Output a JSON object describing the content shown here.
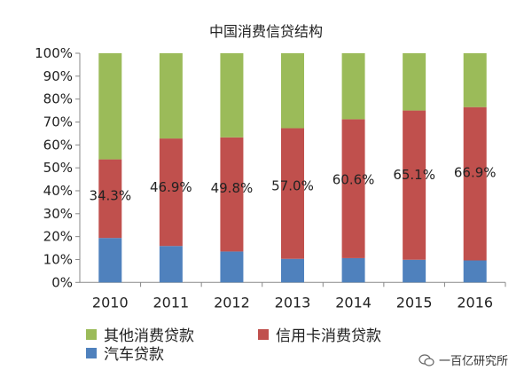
{
  "chart_data": {
    "type": "bar",
    "stacked": true,
    "title": "中国消费信贷结构",
    "categories": [
      "2010",
      "2011",
      "2012",
      "2013",
      "2014",
      "2015",
      "2016"
    ],
    "series": [
      {
        "name": "汽车贷款",
        "color": "#4f81bd",
        "values": [
          19.4,
          15.9,
          13.5,
          10.3,
          10.6,
          9.9,
          9.6
        ]
      },
      {
        "name": "信用卡消费贷款",
        "color": "#c0504d",
        "values": [
          34.3,
          46.9,
          49.8,
          57.0,
          60.6,
          65.1,
          66.9
        ]
      },
      {
        "name": "其他消费贷款",
        "color": "#9bbb59",
        "values": [
          46.3,
          37.2,
          36.7,
          32.7,
          28.8,
          25.0,
          23.5
        ]
      }
    ],
    "data_labels": [
      "34.3%",
      "46.9%",
      "49.8%",
      "57.0%",
      "60.6%",
      "65.1%",
      "66.9%"
    ],
    "yticks": [
      "0%",
      "10%",
      "20%",
      "30%",
      "40%",
      "50%",
      "60%",
      "70%",
      "80%",
      "90%",
      "100%"
    ],
    "ylim": [
      0,
      100
    ],
    "grid": false,
    "legend_position": "bottom"
  },
  "watermark": "一百亿研究所"
}
